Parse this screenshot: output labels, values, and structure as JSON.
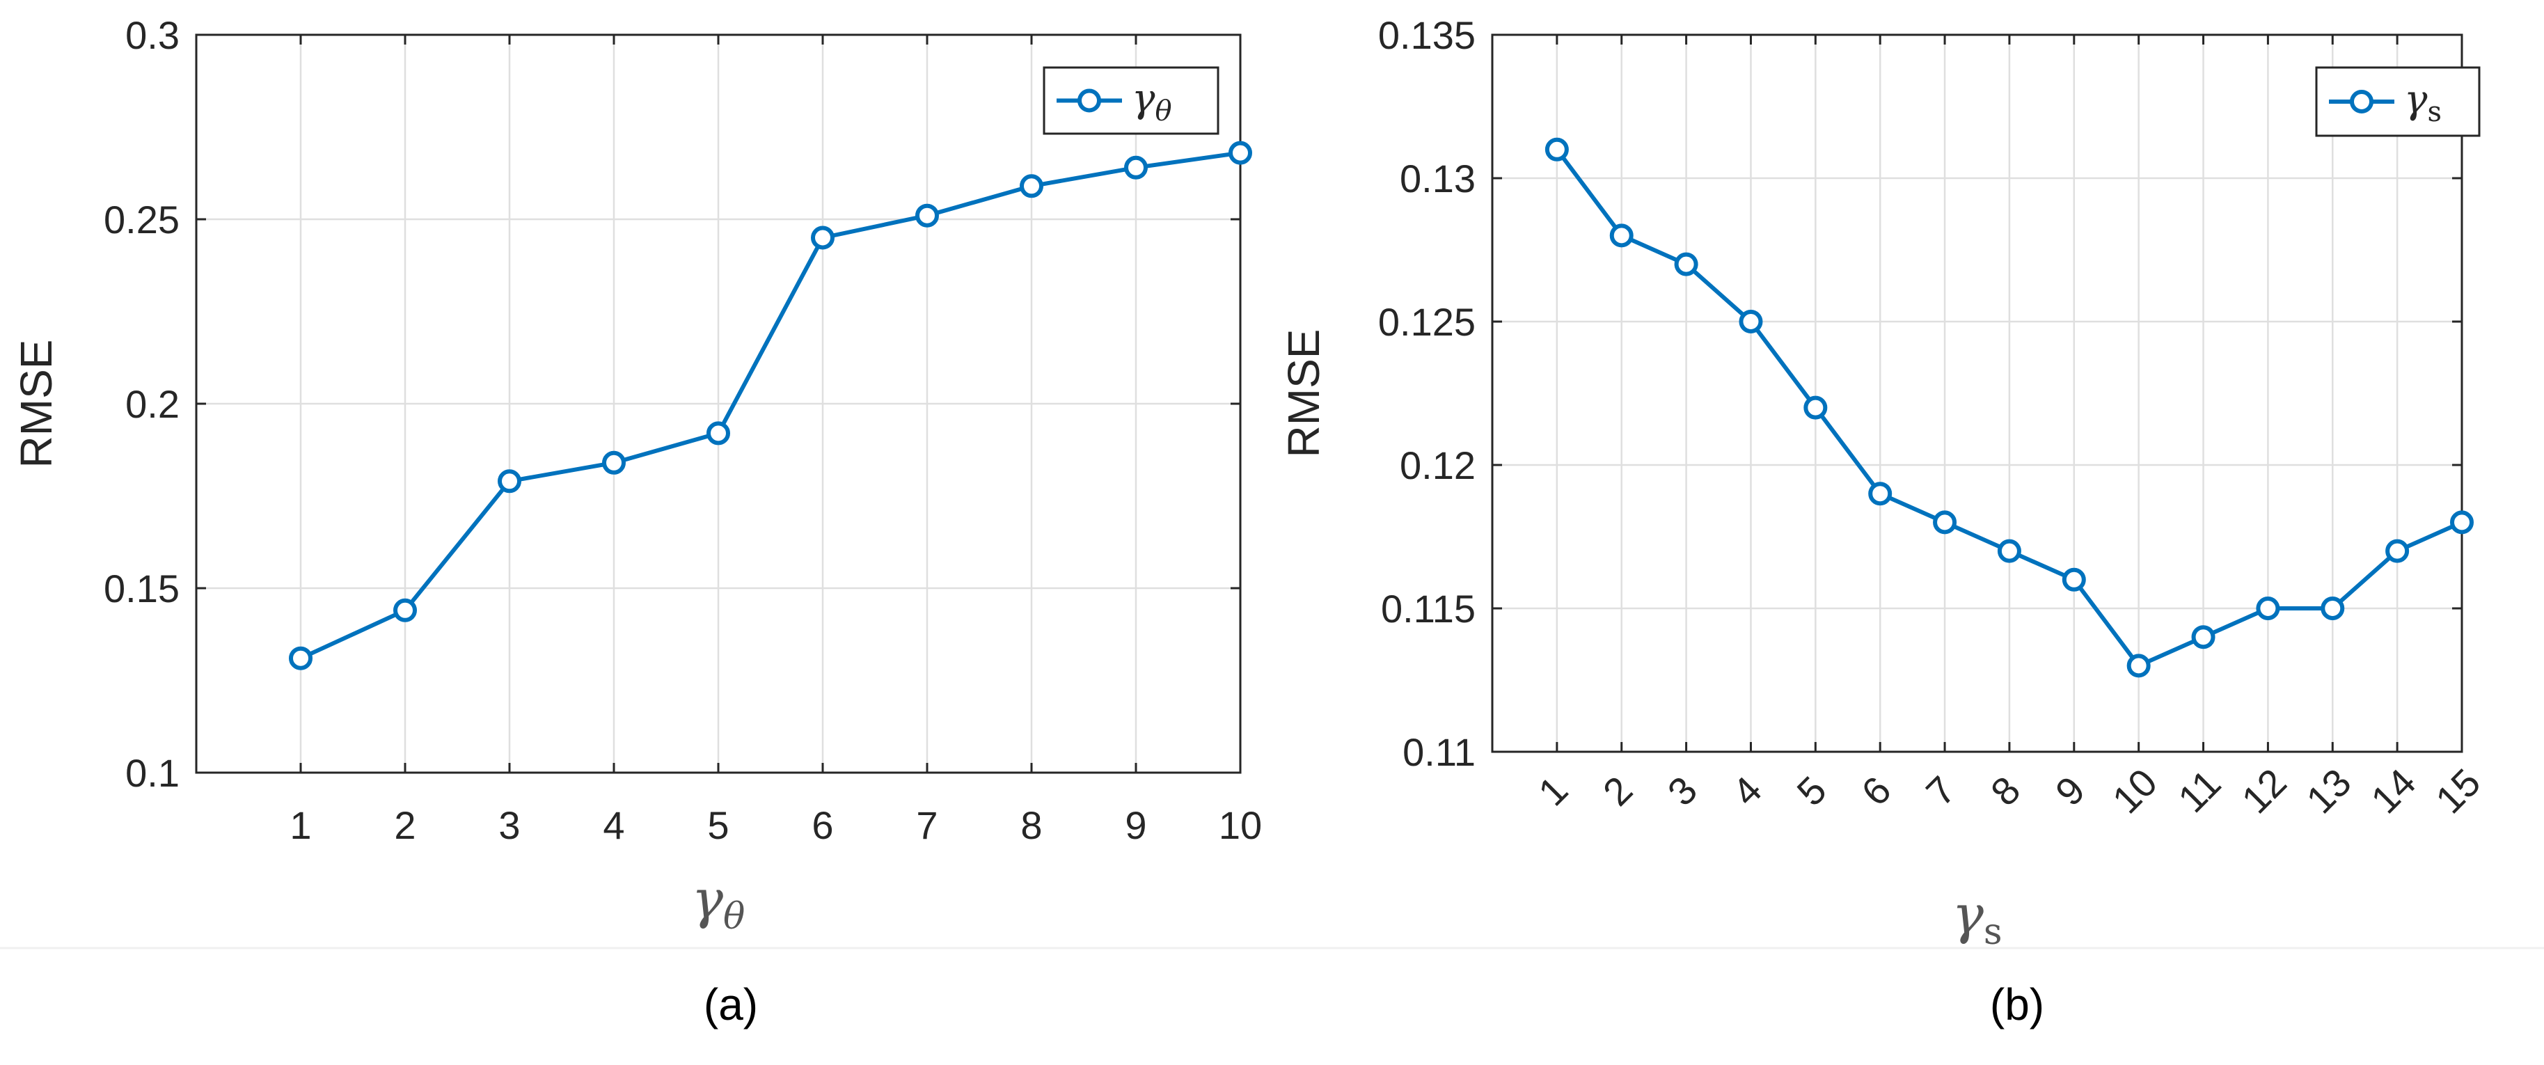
{
  "colors": {
    "series": "#0072BD",
    "grid": "#dfdfdf",
    "axis": "#262626"
  },
  "chart_data": [
    {
      "type": "line",
      "caption": "(a)",
      "xlabel": "γ",
      "xlabel_sub": "θ",
      "ylabel": "RMSE",
      "x": [
        1,
        2,
        3,
        4,
        5,
        6,
        7,
        8,
        9,
        10
      ],
      "xticks": [
        "1",
        "2",
        "3",
        "4",
        "5",
        "6",
        "7",
        "8",
        "9",
        "10"
      ],
      "xlim": [
        0,
        10
      ],
      "ylim": [
        0.1,
        0.3
      ],
      "yticks": [
        0.1,
        0.15,
        0.2,
        0.25,
        0.3
      ],
      "ytick_labels": [
        "0.1",
        "0.15",
        "0.2",
        "0.25",
        "0.3"
      ],
      "series": [
        {
          "name": "γ",
          "name_sub": "θ",
          "marker": "circle",
          "values": [
            0.131,
            0.144,
            0.179,
            0.184,
            0.192,
            0.245,
            0.251,
            0.259,
            0.264,
            0.268
          ]
        }
      ],
      "grid": true,
      "legend": "top-right"
    },
    {
      "type": "line",
      "caption": "(b)",
      "xlabel": "γ",
      "xlabel_sub": "s",
      "ylabel": "RMSE",
      "x": [
        1,
        2,
        3,
        4,
        5,
        6,
        7,
        8,
        9,
        10,
        11,
        12,
        13,
        14,
        15
      ],
      "xticks": [
        "1",
        "2",
        "3",
        "4",
        "5",
        "6",
        "7",
        "8",
        "9",
        "10",
        "11",
        "12",
        "13",
        "14",
        "15"
      ],
      "xlim": [
        0,
        15
      ],
      "ylim": [
        0.11,
        0.135
      ],
      "yticks": [
        0.11,
        0.115,
        0.12,
        0.125,
        0.13,
        0.135
      ],
      "ytick_labels": [
        "0.11",
        "0.115",
        "0.12",
        "0.125",
        "0.13",
        "0.135"
      ],
      "series": [
        {
          "name": "γ",
          "name_sub": "s",
          "marker": "circle",
          "values": [
            0.131,
            0.128,
            0.127,
            0.125,
            0.122,
            0.119,
            0.118,
            0.117,
            0.116,
            0.113,
            0.114,
            0.115,
            0.115,
            0.117,
            0.118
          ]
        }
      ],
      "grid": true,
      "legend": "top-right"
    }
  ]
}
